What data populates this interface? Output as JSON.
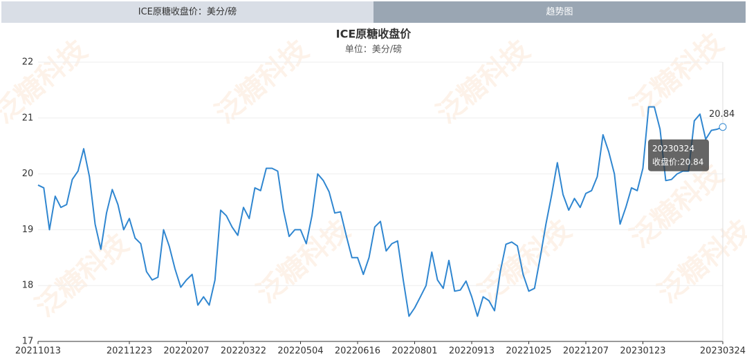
{
  "tabs": [
    "ICE原糖收盘价：美分/磅",
    "趋势图"
  ],
  "watermark": "泛糖科技",
  "chart_data": {
    "type": "line",
    "title": "ICE原糖收盘价",
    "subtitle": "单位：美分/磅",
    "color": "#2f86d0",
    "categories": [
      "20211013",
      null,
      null,
      null,
      null,
      null,
      null,
      null,
      null,
      null,
      null,
      null,
      null,
      null,
      null,
      null,
      "20211223",
      null,
      null,
      null,
      null,
      null,
      null,
      null,
      null,
      null,
      "20220207",
      null,
      null,
      null,
      null,
      null,
      null,
      null,
      null,
      null,
      "20220322",
      null,
      null,
      null,
      null,
      null,
      null,
      null,
      null,
      null,
      "20220504",
      null,
      null,
      null,
      null,
      null,
      null,
      null,
      null,
      null,
      "20220616",
      null,
      null,
      null,
      null,
      null,
      null,
      null,
      null,
      null,
      "20220801",
      null,
      null,
      null,
      null,
      null,
      null,
      null,
      null,
      null,
      "20220913",
      null,
      null,
      null,
      null,
      null,
      null,
      null,
      null,
      null,
      "20221025",
      null,
      null,
      null,
      null,
      null,
      null,
      null,
      null,
      null,
      "20221207",
      null,
      null,
      null,
      null,
      null,
      null,
      null,
      null,
      null,
      "20230123",
      null,
      null,
      null,
      null,
      null,
      null,
      null,
      null,
      null,
      null,
      null,
      null,
      null,
      "20230324"
    ],
    "values": [
      19.8,
      19.75,
      19.0,
      19.6,
      19.4,
      19.45,
      19.9,
      20.05,
      20.45,
      19.95,
      19.1,
      18.65,
      19.3,
      19.72,
      19.45,
      19.0,
      19.2,
      18.85,
      18.75,
      18.25,
      18.1,
      18.15,
      19.0,
      18.7,
      18.3,
      17.97,
      18.1,
      18.2,
      17.65,
      17.8,
      17.65,
      18.1,
      19.35,
      19.25,
      19.05,
      18.9,
      19.4,
      19.2,
      19.75,
      19.7,
      20.1,
      20.1,
      20.05,
      19.35,
      18.88,
      19.0,
      19.0,
      18.75,
      19.25,
      20.0,
      19.88,
      19.68,
      19.3,
      19.32,
      18.9,
      18.5,
      18.5,
      18.2,
      18.5,
      19.05,
      19.15,
      18.62,
      18.75,
      18.8,
      18.1,
      17.45,
      17.6,
      17.8,
      18.0,
      18.6,
      18.1,
      17.95,
      18.45,
      17.9,
      17.92,
      18.08,
      17.8,
      17.45,
      17.8,
      17.73,
      17.55,
      18.25,
      18.74,
      18.78,
      18.71,
      18.2,
      17.9,
      17.95,
      18.5,
      19.1,
      19.62,
      20.2,
      19.63,
      19.35,
      19.56,
      19.4,
      19.65,
      19.7,
      19.95,
      20.7,
      20.4,
      20.0,
      19.1,
      19.4,
      19.75,
      19.7,
      20.1,
      21.2,
      21.2,
      20.8,
      19.88,
      19.9,
      20.0,
      20.05,
      20.05,
      20.95,
      21.07,
      20.62,
      20.78,
      20.8,
      20.84
    ],
    "ylim": [
      17,
      22
    ],
    "yticks": [
      17,
      18,
      19,
      20,
      21,
      22
    ],
    "grid": true,
    "tooltip_label": "收盘价:"
  }
}
